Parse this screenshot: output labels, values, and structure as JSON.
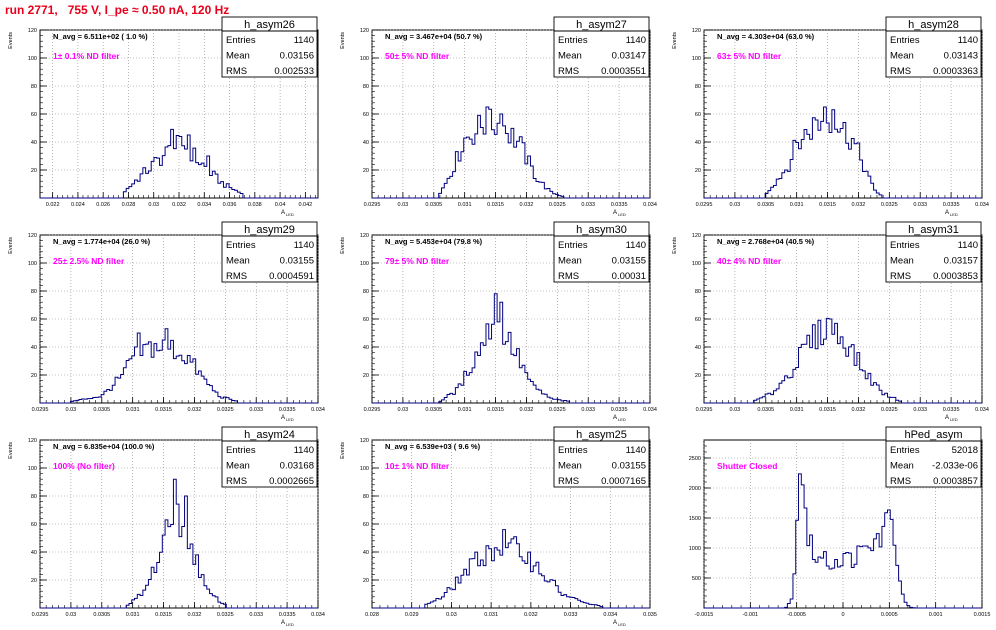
{
  "run_title": "run 2771,   755 V, I_pe ≈ 0.50 nA, 120 Hz",
  "colors": {
    "title": "#e8001c",
    "annotation": "#ff00ff",
    "hist": "#000080",
    "axis": "#000000"
  },
  "chart_data": [
    {
      "type": "histogram",
      "name": "h_asym26",
      "navg": "N_avg = 6.511e+02 ( 1.0 %)",
      "filter": "1± 0.1% ND filter",
      "entries_label": "Entries",
      "entries": "1140",
      "mean_label": "Mean",
      "mean": "0.03156",
      "rms_label": "RMS",
      "rms": "0.002533",
      "ylabel": "Events",
      "xlabel": "A_LED",
      "xlim": [
        0.021,
        0.043
      ],
      "ylim": [
        0,
        120
      ],
      "xticks": [
        0.022,
        0.024,
        0.026,
        0.028,
        0.03,
        0.032,
        0.034,
        0.036,
        0.038,
        0.04,
        0.042
      ],
      "xtick_labels": [
        "0.022",
        "0.024",
        "0.026",
        "0.028",
        "0.03",
        "0.032",
        "0.034",
        "0.036",
        "0.038",
        "0.04",
        "0.042"
      ],
      "yticks": [
        20,
        40,
        60,
        80,
        100,
        120
      ],
      "profile": [
        {
          "x": 0.0275,
          "y": 3
        },
        {
          "x": 0.029,
          "y": 16
        },
        {
          "x": 0.0305,
          "y": 28
        },
        {
          "x": 0.0315,
          "y": 36
        },
        {
          "x": 0.0325,
          "y": 38
        },
        {
          "x": 0.0335,
          "y": 27
        },
        {
          "x": 0.0345,
          "y": 18
        },
        {
          "x": 0.0355,
          "y": 10
        },
        {
          "x": 0.037,
          "y": 3
        }
      ],
      "spikes": [
        {
          "x": 0.0315,
          "y": 49
        },
        {
          "x": 0.0328,
          "y": 45
        },
        {
          "x": 0.0342,
          "y": 30
        }
      ]
    },
    {
      "type": "histogram",
      "name": "h_asym27",
      "navg": "N_avg = 3.467e+04 (50.7 %)",
      "filter": "50± 5% ND filter",
      "entries_label": "Entries",
      "entries": "1140",
      "mean_label": "Mean",
      "mean": "0.03147",
      "rms_label": "RMS",
      "rms": "0.0003551",
      "ylabel": "Events",
      "xlabel": "A_LED",
      "xlim": [
        0.0295,
        0.034
      ],
      "ylim": [
        0,
        120
      ],
      "xticks": [
        0.0295,
        0.03,
        0.0305,
        0.031,
        0.0315,
        0.032,
        0.0325,
        0.033,
        0.0335,
        0.034
      ],
      "xtick_labels": [
        "0.0295",
        "0.03",
        "0.0305",
        "0.031",
        "0.0315",
        "0.032",
        "0.0325",
        "0.033",
        "0.0335",
        "0.034"
      ],
      "yticks": [
        20,
        40,
        60,
        80,
        100,
        120
      ],
      "profile": [
        {
          "x": 0.0306,
          "y": 3
        },
        {
          "x": 0.03085,
          "y": 25
        },
        {
          "x": 0.031,
          "y": 42
        },
        {
          "x": 0.0313,
          "y": 52
        },
        {
          "x": 0.0316,
          "y": 53
        },
        {
          "x": 0.0319,
          "y": 38
        },
        {
          "x": 0.03215,
          "y": 15
        },
        {
          "x": 0.0324,
          "y": 4
        },
        {
          "x": 0.0326,
          "y": 1
        }
      ],
      "spikes": [
        {
          "x": 0.03135,
          "y": 65
        },
        {
          "x": 0.0316,
          "y": 60
        }
      ]
    },
    {
      "type": "histogram",
      "name": "h_asym28",
      "navg": "N_avg = 4.303e+04 (63.0 %)",
      "filter": "63± 5% ND filter",
      "entries_label": "Entries",
      "entries": "1140",
      "mean_label": "Mean",
      "mean": "0.03143",
      "rms_label": "RMS",
      "rms": "0.0003363",
      "ylabel": "Events",
      "xlabel": "A_LED",
      "xlim": [
        0.0295,
        0.034
      ],
      "ylim": [
        0,
        120
      ],
      "xticks": [
        0.0295,
        0.03,
        0.0305,
        0.031,
        0.0315,
        0.032,
        0.0325,
        0.033,
        0.0335,
        0.034
      ],
      "xtick_labels": [
        "0.0295",
        "0.03",
        "0.0305",
        "0.031",
        "0.0315",
        "0.032",
        "0.0325",
        "0.033",
        "0.0335",
        "0.034"
      ],
      "yticks": [
        20,
        40,
        60,
        80,
        100,
        120
      ],
      "profile": [
        {
          "x": 0.0305,
          "y": 3
        },
        {
          "x": 0.03085,
          "y": 22
        },
        {
          "x": 0.031,
          "y": 38
        },
        {
          "x": 0.0313,
          "y": 53
        },
        {
          "x": 0.0316,
          "y": 56
        },
        {
          "x": 0.0319,
          "y": 42
        },
        {
          "x": 0.0321,
          "y": 22
        },
        {
          "x": 0.03225,
          "y": 6
        },
        {
          "x": 0.0324,
          "y": 1
        }
      ],
      "spikes": [
        {
          "x": 0.03145,
          "y": 65
        },
        {
          "x": 0.0316,
          "y": 63
        }
      ]
    },
    {
      "type": "histogram",
      "name": "h_asym29",
      "navg": "N_avg = 1.774e+04 (26.0 %)",
      "filter": "25± 2.5% ND filter",
      "entries_label": "Entries",
      "entries": "1140",
      "mean_label": "Mean",
      "mean": "0.03155",
      "rms_label": "RMS",
      "rms": "0.0004591",
      "ylabel": "Events",
      "xlabel": "A_LED",
      "xlim": [
        0.0295,
        0.034
      ],
      "ylim": [
        0,
        120
      ],
      "xticks": [
        0.0295,
        0.03,
        0.0305,
        0.031,
        0.0315,
        0.032,
        0.0325,
        0.033,
        0.0335,
        0.034
      ],
      "xtick_labels": [
        "0.0295",
        "0.03",
        "0.0305",
        "0.031",
        "0.0315",
        "0.032",
        "0.0325",
        "0.033",
        "0.0335",
        "0.034"
      ],
      "yticks": [
        20,
        40,
        60,
        80,
        100,
        120
      ],
      "profile": [
        {
          "x": 0.03,
          "y": 1
        },
        {
          "x": 0.0305,
          "y": 5
        },
        {
          "x": 0.03085,
          "y": 20
        },
        {
          "x": 0.031,
          "y": 33
        },
        {
          "x": 0.0313,
          "y": 40
        },
        {
          "x": 0.0316,
          "y": 40
        },
        {
          "x": 0.0319,
          "y": 32
        },
        {
          "x": 0.03215,
          "y": 17
        },
        {
          "x": 0.0324,
          "y": 5
        },
        {
          "x": 0.0327,
          "y": 1
        }
      ],
      "spikes": [
        {
          "x": 0.0311,
          "y": 50
        },
        {
          "x": 0.03155,
          "y": 53
        }
      ]
    },
    {
      "type": "histogram",
      "name": "h_asym30",
      "navg": "N_avg = 5.453e+04 (79.8 %)",
      "filter": "79± 5% ND filter",
      "entries_label": "Entries",
      "entries": "1140",
      "mean_label": "Mean",
      "mean": "0.03155",
      "rms_label": "RMS",
      "rms": "0.00031",
      "ylabel": "Events",
      "xlabel": "A_LED",
      "xlim": [
        0.0295,
        0.034
      ],
      "ylim": [
        0,
        120
      ],
      "xticks": [
        0.0295,
        0.03,
        0.0305,
        0.031,
        0.0315,
        0.032,
        0.0325,
        0.033,
        0.0335,
        0.034
      ],
      "xtick_labels": [
        "0.0295",
        "0.03",
        "0.0305",
        "0.031",
        "0.0315",
        "0.032",
        "0.0325",
        "0.033",
        "0.0335",
        "0.034"
      ],
      "yticks": [
        20,
        40,
        60,
        80,
        100,
        120
      ],
      "profile": [
        {
          "x": 0.0306,
          "y": 1
        },
        {
          "x": 0.0309,
          "y": 10
        },
        {
          "x": 0.0312,
          "y": 35
        },
        {
          "x": 0.0315,
          "y": 62
        },
        {
          "x": 0.0318,
          "y": 38
        },
        {
          "x": 0.0321,
          "y": 12
        },
        {
          "x": 0.0324,
          "y": 3
        },
        {
          "x": 0.0327,
          "y": 1
        }
      ],
      "spikes": [
        {
          "x": 0.0315,
          "y": 78
        },
        {
          "x": 0.03158,
          "y": 72
        }
      ]
    },
    {
      "type": "histogram",
      "name": "h_asym31",
      "navg": "N_avg = 2.768e+04 (40.5 %)",
      "filter": "40± 4% ND filter",
      "entries_label": "Entries",
      "entries": "1140",
      "mean_label": "Mean",
      "mean": "0.03157",
      "rms_label": "RMS",
      "rms": "0.0003853",
      "ylabel": "Events",
      "xlabel": "A_LED",
      "xlim": [
        0.0295,
        0.034
      ],
      "ylim": [
        0,
        120
      ],
      "xticks": [
        0.0295,
        0.03,
        0.0305,
        0.031,
        0.0315,
        0.032,
        0.0325,
        0.033,
        0.0335,
        0.034
      ],
      "xtick_labels": [
        "0.0295",
        "0.03",
        "0.0305",
        "0.031",
        "0.0315",
        "0.032",
        "0.0325",
        "0.033",
        "0.0335",
        "0.034"
      ],
      "yticks": [
        20,
        40,
        60,
        80,
        100,
        120
      ],
      "profile": [
        {
          "x": 0.0303,
          "y": 1
        },
        {
          "x": 0.0306,
          "y": 7
        },
        {
          "x": 0.0309,
          "y": 22
        },
        {
          "x": 0.0312,
          "y": 43
        },
        {
          "x": 0.0315,
          "y": 55
        },
        {
          "x": 0.0318,
          "y": 44
        },
        {
          "x": 0.0321,
          "y": 22
        },
        {
          "x": 0.0324,
          "y": 7
        },
        {
          "x": 0.0327,
          "y": 1
        }
      ],
      "spikes": [
        {
          "x": 0.03155,
          "y": 60
        }
      ]
    },
    {
      "type": "histogram",
      "name": "h_asym24",
      "navg": "N_avg = 6.835e+04 (100.0 %)",
      "filter": "100% (No filter)",
      "entries_label": "Entries",
      "entries": "1140",
      "mean_label": "Mean",
      "mean": "0.03168",
      "rms_label": "RMS",
      "rms": "0.0002665",
      "ylabel": "Events",
      "xlabel": "A_LED",
      "xlim": [
        0.0295,
        0.034
      ],
      "ylim": [
        0,
        120
      ],
      "xticks": [
        0.0295,
        0.03,
        0.0305,
        0.031,
        0.0315,
        0.032,
        0.0325,
        0.033,
        0.0335,
        0.034
      ],
      "xtick_labels": [
        "0.0295",
        "0.03",
        "0.0305",
        "0.031",
        "0.0315",
        "0.032",
        "0.0325",
        "0.033",
        "0.0335",
        "0.034"
      ],
      "yticks": [
        20,
        40,
        60,
        80,
        100,
        120
      ],
      "profile": [
        {
          "x": 0.0309,
          "y": 1
        },
        {
          "x": 0.0312,
          "y": 12
        },
        {
          "x": 0.03145,
          "y": 40
        },
        {
          "x": 0.0317,
          "y": 70
        },
        {
          "x": 0.03195,
          "y": 45
        },
        {
          "x": 0.0322,
          "y": 12
        },
        {
          "x": 0.0325,
          "y": 2
        }
      ],
      "spikes": [
        {
          "x": 0.0317,
          "y": 92
        },
        {
          "x": 0.03185,
          "y": 80
        }
      ]
    },
    {
      "type": "histogram",
      "name": "h_asym25",
      "navg": "N_avg = 6.539e+03 ( 9.6 %)",
      "filter": "10± 1% ND filter",
      "entries_label": "Entries",
      "entries": "1140",
      "mean_label": "Mean",
      "mean": "0.03155",
      "rms_label": "RMS",
      "rms": "0.0007165",
      "ylabel": "Events",
      "xlabel": "A_LED",
      "xlim": [
        0.028,
        0.035
      ],
      "ylim": [
        0,
        120
      ],
      "xticks": [
        0.028,
        0.029,
        0.03,
        0.031,
        0.032,
        0.033,
        0.034,
        0.035
      ],
      "xtick_labels": [
        "0.028",
        "0.029",
        "0.03",
        "0.031",
        "0.032",
        "0.033",
        "0.034",
        "0.035"
      ],
      "yticks": [
        20,
        40,
        60,
        80,
        100,
        120
      ],
      "profile": [
        {
          "x": 0.0293,
          "y": 2
        },
        {
          "x": 0.0298,
          "y": 8
        },
        {
          "x": 0.0303,
          "y": 24
        },
        {
          "x": 0.0308,
          "y": 38
        },
        {
          "x": 0.0313,
          "y": 45
        },
        {
          "x": 0.0318,
          "y": 40
        },
        {
          "x": 0.0323,
          "y": 25
        },
        {
          "x": 0.0328,
          "y": 10
        },
        {
          "x": 0.0333,
          "y": 4
        },
        {
          "x": 0.0338,
          "y": 1
        }
      ],
      "spikes": [
        {
          "x": 0.0313,
          "y": 56
        }
      ]
    },
    {
      "type": "histogram",
      "name": "hPed_asym",
      "navg": "",
      "filter": "Shutter Closed",
      "entries_label": "Entries",
      "entries": "52018",
      "mean_label": "Mean",
      "mean": "-2.033e-06",
      "rms_label": "RMS",
      "rms": "0.0003857",
      "ylabel": "",
      "xlabel": "",
      "xlim": [
        -0.0015,
        0.0015
      ],
      "ylim": [
        0,
        2800
      ],
      "xticks": [
        -0.0015,
        -0.001,
        -0.0005,
        0,
        0.0005,
        0.001,
        0.0015
      ],
      "xtick_labels": [
        "-0.0015",
        "-0.001",
        "-0.0005",
        "0",
        "0.0005",
        "0.001",
        "0.0015"
      ],
      "yticks": [
        500,
        1000,
        1500,
        2000,
        2500
      ],
      "profile": [
        {
          "x": -0.00062,
          "y": 0
        },
        {
          "x": -0.00055,
          "y": 150
        },
        {
          "x": -0.0005,
          "y": 1300
        },
        {
          "x": -0.00047,
          "y": 2500
        },
        {
          "x": -0.00045,
          "y": 2650
        },
        {
          "x": -0.00042,
          "y": 2000
        },
        {
          "x": -0.00038,
          "y": 1200
        },
        {
          "x": -0.0003,
          "y": 850
        },
        {
          "x": -0.0002,
          "y": 780
        },
        {
          "x": -0.0001,
          "y": 780
        },
        {
          "x": 0,
          "y": 800
        },
        {
          "x": 0.0001,
          "y": 840
        },
        {
          "x": 0.0002,
          "y": 900
        },
        {
          "x": 0.0003,
          "y": 1000
        },
        {
          "x": 0.0004,
          "y": 1200
        },
        {
          "x": 0.00048,
          "y": 1400
        },
        {
          "x": 0.00052,
          "y": 1420
        },
        {
          "x": 0.00056,
          "y": 1200
        },
        {
          "x": 0.0006,
          "y": 600
        },
        {
          "x": 0.00065,
          "y": 150
        },
        {
          "x": 0.00072,
          "y": 10
        },
        {
          "x": 0.0008,
          "y": 0
        }
      ],
      "spikes": []
    }
  ]
}
